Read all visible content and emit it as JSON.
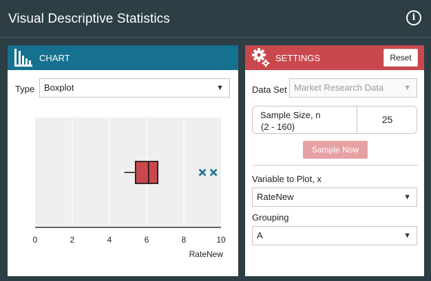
{
  "app": {
    "title": "Visual Descriptive Statistics"
  },
  "chart_panel": {
    "header": "CHART",
    "type_label": "Type",
    "type_value": "Boxplot"
  },
  "settings_panel": {
    "header": "SETTINGS",
    "reset_label": "Reset",
    "dataset_label": "Data Set",
    "dataset_value": "Market Research Data",
    "sample_size_label_line1": "Sample Size, n",
    "sample_size_label_line2": "(2 - 160)",
    "sample_size_value": "25",
    "sample_now_label": "Sample Now",
    "variable_label": "Variable to Plot, x",
    "variable_value": "RateNew",
    "grouping_label": "Grouping",
    "grouping_value": "A"
  },
  "colors": {
    "chart_header": "#15718f",
    "settings_header": "#c9484e",
    "box_fill": "#c9484e",
    "outlier": "#15718f",
    "background": "#2d3e45"
  },
  "chart_data": {
    "type": "boxplot",
    "xlabel": "RateNew",
    "xlim": [
      0,
      10
    ],
    "ticks": [
      "0",
      "2",
      "4",
      "6",
      "8",
      "10"
    ],
    "grid": true,
    "box": {
      "whisker_low": 4.8,
      "q1": 5.4,
      "median": 6.1,
      "q3": 6.6,
      "whisker_high": 6.6
    },
    "outliers": [
      9.0,
      9.6
    ]
  }
}
